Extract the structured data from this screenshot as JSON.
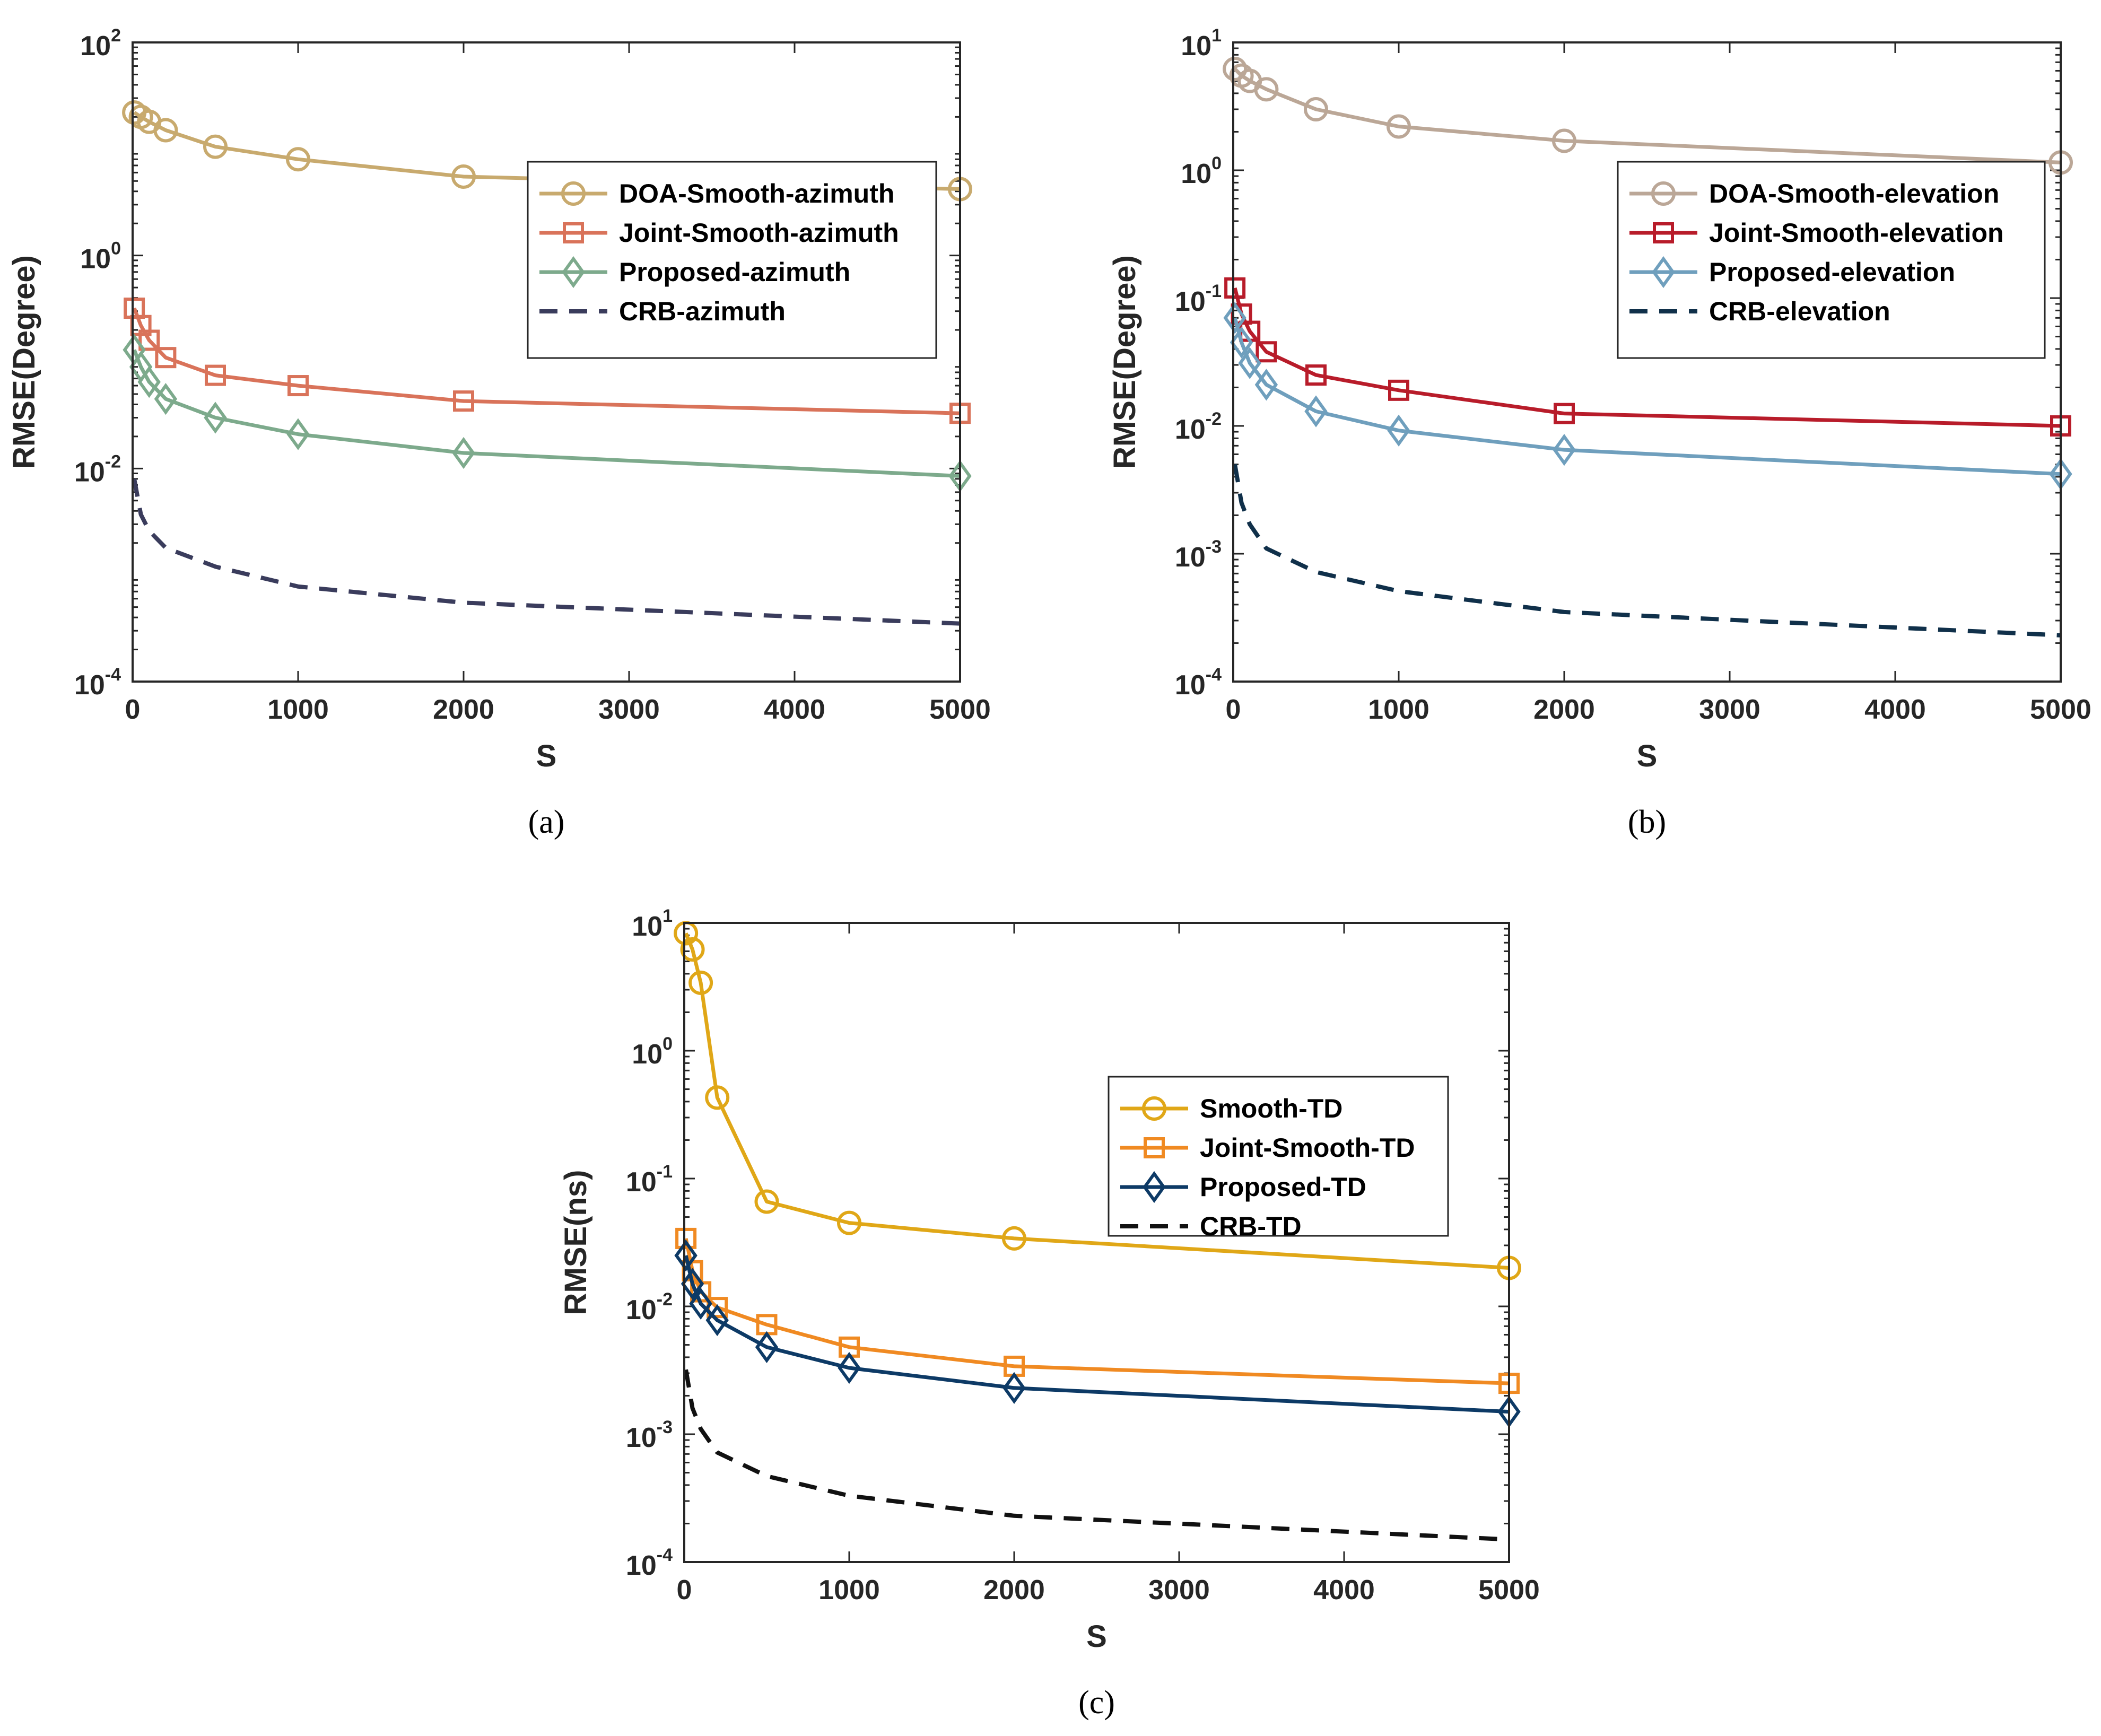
{
  "chart_data": [
    {
      "type": "line",
      "caption": "(a)",
      "xlabel": "S",
      "ylabel": "RMSE(Degree)",
      "yscale": "log",
      "xlim": [
        0,
        5000
      ],
      "ylim": [
        0.0001,
        100
      ],
      "xticks": [
        "0",
        "1000",
        "2000",
        "3000",
        "4000",
        "5000"
      ],
      "yticks": [
        {
          "base": "10",
          "exp": "-4"
        },
        {
          "base": "10",
          "exp": "-2"
        },
        {
          "base": "10",
          "exp": "0"
        },
        {
          "base": "10",
          "exp": "2"
        }
      ],
      "legend_position": "upper-right",
      "grid": false,
      "series": [
        {
          "name": "DOA-Smooth-azimuth",
          "color": "#c8aa6e",
          "marker": "circle",
          "style": "solid",
          "x": [
            10,
            50,
            100,
            200,
            500,
            1000,
            2000,
            5000
          ],
          "y": [
            22,
            20,
            18,
            15,
            10.5,
            8,
            5.5,
            4.2
          ]
        },
        {
          "name": "Joint-Smooth-azimuth",
          "color": "#d9735a",
          "marker": "square",
          "style": "solid",
          "x": [
            10,
            50,
            100,
            200,
            500,
            1000,
            2000,
            5000
          ],
          "y": [
            0.32,
            0.22,
            0.16,
            0.11,
            0.075,
            0.06,
            0.043,
            0.033
          ]
        },
        {
          "name": "Proposed-azimuth",
          "color": "#7daa8c",
          "marker": "diamond",
          "style": "solid",
          "x": [
            10,
            50,
            100,
            200,
            500,
            1000,
            2000,
            5000
          ],
          "y": [
            0.13,
            0.09,
            0.065,
            0.045,
            0.03,
            0.021,
            0.014,
            0.0085
          ]
        },
        {
          "name": "CRB-azimuth",
          "color": "#3a3c5c",
          "marker": "none",
          "style": "dashed",
          "x": [
            10,
            50,
            100,
            200,
            500,
            1000,
            2000,
            5000
          ],
          "y": [
            0.008,
            0.0037,
            0.0026,
            0.0018,
            0.0012,
            0.00078,
            0.00055,
            0.00035
          ]
        }
      ]
    },
    {
      "type": "line",
      "caption": "(b)",
      "xlabel": "S",
      "ylabel": "RMSE(Degree)",
      "yscale": "log",
      "xlim": [
        0,
        5000
      ],
      "ylim": [
        0.0001,
        10
      ],
      "xticks": [
        "0",
        "1000",
        "2000",
        "3000",
        "4000",
        "5000"
      ],
      "yticks": [
        {
          "base": "10",
          "exp": "-4"
        },
        {
          "base": "10",
          "exp": "-3"
        },
        {
          "base": "10",
          "exp": "-2"
        },
        {
          "base": "10",
          "exp": "-1"
        },
        {
          "base": "10",
          "exp": "0"
        },
        {
          "base": "10",
          "exp": "1"
        }
      ],
      "legend_position": "upper-right",
      "grid": false,
      "series": [
        {
          "name": "DOA-Smooth-elevation",
          "color": "#bba797",
          "marker": "circle",
          "style": "solid",
          "x": [
            10,
            50,
            100,
            200,
            500,
            1000,
            2000,
            5000
          ],
          "y": [
            6.2,
            5.5,
            5.0,
            4.3,
            3.0,
            2.2,
            1.7,
            1.15
          ]
        },
        {
          "name": "Joint-Smooth-elevation",
          "color": "#b81c2a",
          "marker": "square",
          "style": "solid",
          "x": [
            10,
            50,
            100,
            200,
            500,
            1000,
            2000,
            5000
          ],
          "y": [
            0.12,
            0.075,
            0.055,
            0.038,
            0.025,
            0.019,
            0.0125,
            0.01
          ]
        },
        {
          "name": "Proposed-elevation",
          "color": "#6f9fbd",
          "marker": "diamond",
          "style": "solid",
          "x": [
            10,
            50,
            100,
            200,
            500,
            1000,
            2000,
            5000
          ],
          "y": [
            0.07,
            0.045,
            0.031,
            0.021,
            0.013,
            0.0092,
            0.0065,
            0.0042
          ]
        },
        {
          "name": "CRB-elevation",
          "color": "#10304a",
          "marker": "none",
          "style": "dashed",
          "x": [
            10,
            50,
            100,
            200,
            500,
            1000,
            2000,
            5000
          ],
          "y": [
            0.005,
            0.0025,
            0.0017,
            0.0011,
            0.00072,
            0.00051,
            0.00035,
            0.00023
          ]
        }
      ]
    },
    {
      "type": "line",
      "caption": "(c)",
      "xlabel": "S",
      "ylabel": "RMSE(ns)",
      "yscale": "log",
      "xlim": [
        0,
        5000
      ],
      "ylim": [
        0.0001,
        10
      ],
      "xticks": [
        "0",
        "1000",
        "2000",
        "3000",
        "4000",
        "5000"
      ],
      "yticks": [
        {
          "base": "10",
          "exp": "-4"
        },
        {
          "base": "10",
          "exp": "-3"
        },
        {
          "base": "10",
          "exp": "-2"
        },
        {
          "base": "10",
          "exp": "-1"
        },
        {
          "base": "10",
          "exp": "0"
        },
        {
          "base": "10",
          "exp": "1"
        }
      ],
      "legend_position": "right",
      "grid": false,
      "series": [
        {
          "name": "Smooth-TD",
          "color": "#e0a717",
          "marker": "circle",
          "style": "solid",
          "x": [
            10,
            50,
            100,
            200,
            500,
            1000,
            2000,
            5000
          ],
          "y": [
            8.3,
            6.2,
            3.4,
            0.43,
            0.066,
            0.045,
            0.034,
            0.02
          ]
        },
        {
          "name": "Joint-Smooth-TD",
          "color": "#f08a22",
          "marker": "square",
          "style": "solid",
          "x": [
            10,
            50,
            100,
            200,
            500,
            1000,
            2000,
            5000
          ],
          "y": [
            0.034,
            0.019,
            0.013,
            0.0098,
            0.0072,
            0.0048,
            0.0034,
            0.0025
          ]
        },
        {
          "name": "Proposed-TD",
          "color": "#0d3a66",
          "marker": "diamond",
          "style": "solid",
          "x": [
            10,
            50,
            100,
            200,
            500,
            1000,
            2000,
            5000
          ],
          "y": [
            0.025,
            0.015,
            0.0105,
            0.0078,
            0.0048,
            0.0033,
            0.0023,
            0.0015
          ]
        },
        {
          "name": "CRB-TD",
          "color": "#111111",
          "marker": "none",
          "style": "dashed",
          "x": [
            10,
            50,
            100,
            200,
            500,
            1000,
            2000,
            5000
          ],
          "y": [
            0.0032,
            0.0016,
            0.0011,
            0.00072,
            0.00047,
            0.00033,
            0.00023,
            0.00015
          ]
        }
      ]
    }
  ]
}
